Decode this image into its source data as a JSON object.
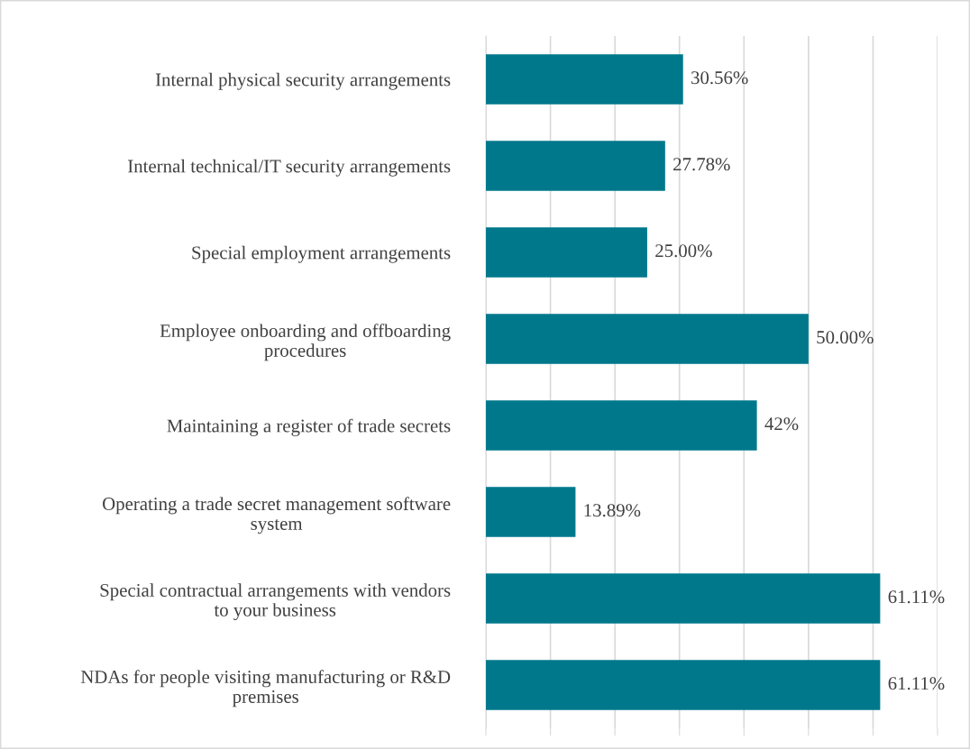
{
  "chart_data": {
    "type": "bar",
    "orientation": "horizontal",
    "categories": [
      "Internal physical security arrangements",
      "Internal technical/IT security arrangements",
      "Special employment arrangements",
      "Employee onboarding and offboarding\nprocedures",
      "Maintaining a register of trade secrets",
      "Operating a trade secret management software\nsystem",
      "Special contractual arrangements with vendors\nto your business",
      "NDAs for people visiting manufacturing or R&D\npremises"
    ],
    "values": [
      30.56,
      27.78,
      25.0,
      50.0,
      42,
      13.89,
      61.11,
      61.11
    ],
    "value_labels": [
      "30.56%",
      "27.78%",
      "25.00%",
      "50.00%",
      "42%",
      "13.89%",
      "61.11%",
      "61.11%"
    ],
    "color": "#00788c",
    "xlim": [
      0,
      70
    ],
    "xticks": [
      {
        "value": 0,
        "label": null
      },
      {
        "value": 10,
        "label": null
      },
      {
        "value": 20,
        "label": null
      },
      {
        "value": 30,
        "label": null
      },
      {
        "value": 40,
        "label": null
      },
      {
        "value": 50,
        "label": null
      },
      {
        "value": 60,
        "label": null
      },
      {
        "value": 70,
        "label": null
      }
    ],
    "grid": "x",
    "tick_labels": "y"
  }
}
